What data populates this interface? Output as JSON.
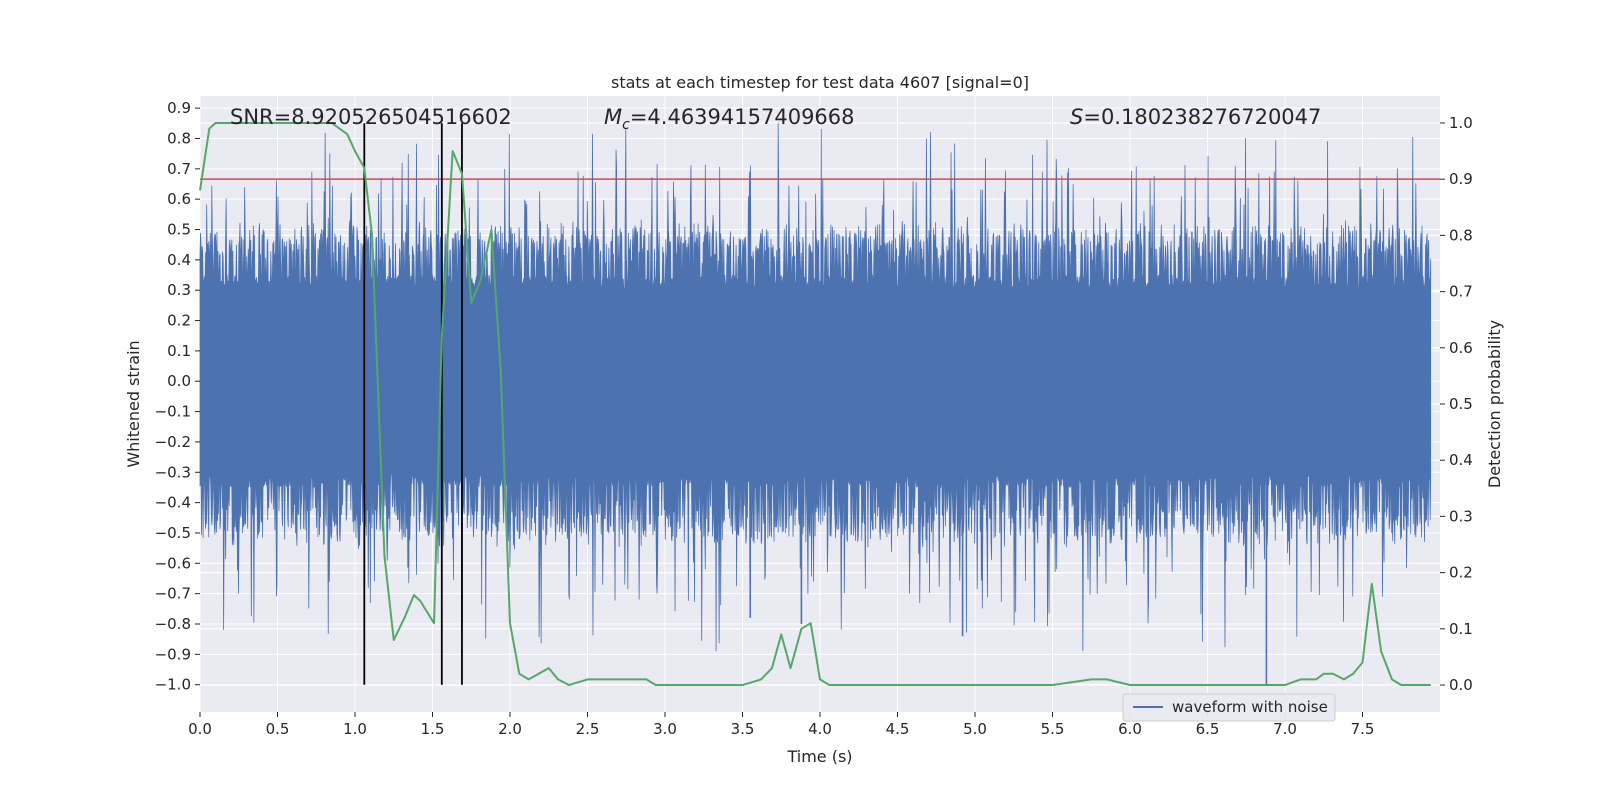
{
  "chart_data": {
    "type": "line",
    "title": "stats at each timestep for test data 4607 [signal=0]",
    "xlabel": "Time (s)",
    "ylabel": "Whitened strain",
    "y2label": "Detection probability",
    "xlim": [
      0.0,
      8.0
    ],
    "ylim": [
      -1.09,
      0.94
    ],
    "y2lim": [
      -0.048,
      1.048
    ],
    "xticks": [
      0.0,
      0.5,
      1.0,
      1.5,
      2.0,
      2.5,
      3.0,
      3.5,
      4.0,
      4.5,
      5.0,
      5.5,
      6.0,
      6.5,
      7.0,
      7.5
    ],
    "xtick_labels": [
      "0.0",
      "0.5",
      "1.0",
      "1.5",
      "2.0",
      "2.5",
      "3.0",
      "3.5",
      "4.0",
      "4.5",
      "5.0",
      "5.5",
      "6.0",
      "6.5",
      "7.0",
      "7.5"
    ],
    "yticks": [
      -1.0,
      -0.9,
      -0.8,
      -0.7,
      -0.6,
      -0.5,
      -0.4,
      -0.3,
      -0.2,
      -0.1,
      0.0,
      0.1,
      0.2,
      0.3,
      0.4,
      0.5,
      0.6,
      0.7,
      0.8,
      0.9
    ],
    "ytick_labels": [
      "−1.0",
      "−0.9",
      "−0.8",
      "−0.7",
      "−0.6",
      "−0.5",
      "−0.4",
      "−0.3",
      "−0.2",
      "−0.1",
      "0.0",
      "0.1",
      "0.2",
      "0.3",
      "0.4",
      "0.5",
      "0.6",
      "0.7",
      "0.8",
      "0.9"
    ],
    "y2ticks": [
      0.0,
      0.1,
      0.2,
      0.3,
      0.4,
      0.5,
      0.6,
      0.7,
      0.8,
      0.9,
      1.0
    ],
    "y2tick_labels": [
      "0.0",
      "0.1",
      "0.2",
      "0.3",
      "0.4",
      "0.5",
      "0.6",
      "0.7",
      "0.8",
      "0.9",
      "1.0"
    ],
    "threshold": 0.9,
    "vlines_x": [
      1.06,
      1.56,
      1.69
    ],
    "vlines_yrange": [
      -1.0,
      0.85
    ],
    "annotations": {
      "snr": "SNR=8.920526504516602",
      "mc_symbol": "M",
      "mc_sub": "c",
      "mc_value": "=4.46394157409668",
      "s_symbol": "S",
      "s_value": "=0.180238276720047"
    },
    "legend": {
      "label": "waveform with noise",
      "position": "lower-right"
    },
    "series": [
      {
        "name": "waveform with noise",
        "axis": "left",
        "color": "#4c72b0",
        "description": "dense whitened-strain noise, core amplitude about ±0.3 with spikes to about ±0.85",
        "typical_range": [
          -0.3,
          0.3
        ],
        "extreme_range": [
          -1.0,
          0.85
        ]
      },
      {
        "name": "detection probability",
        "axis": "right",
        "color": "#55a868",
        "x": [
          0.0,
          0.06,
          0.1,
          0.2,
          0.4,
          0.6,
          0.85,
          0.95,
          1.0,
          1.06,
          1.11,
          1.19,
          1.25,
          1.32,
          1.38,
          1.42,
          1.51,
          1.56,
          1.63,
          1.69,
          1.75,
          1.81,
          1.88,
          1.94,
          2.0,
          2.06,
          2.12,
          2.25,
          2.31,
          2.38,
          2.5,
          2.62,
          2.69,
          2.75,
          2.81,
          2.88,
          2.94,
          3.0,
          3.25,
          3.5,
          3.62,
          3.69,
          3.75,
          3.81,
          3.88,
          3.94,
          4.0,
          4.06,
          4.12,
          4.25,
          4.5,
          4.75,
          4.85,
          4.95,
          5.0,
          5.25,
          5.5,
          5.75,
          5.85,
          6.0,
          6.25,
          6.5,
          6.75,
          6.85,
          7.0,
          7.1,
          7.2,
          7.25,
          7.31,
          7.38,
          7.44,
          7.5,
          7.56,
          7.62,
          7.69,
          7.75,
          7.94
        ],
        "values": [
          0.88,
          0.99,
          1.0,
          1.0,
          1.0,
          1.0,
          1.0,
          0.98,
          0.95,
          0.92,
          0.8,
          0.23,
          0.08,
          0.12,
          0.16,
          0.15,
          0.11,
          0.62,
          0.95,
          0.91,
          0.68,
          0.72,
          0.81,
          0.56,
          0.11,
          0.02,
          0.01,
          0.03,
          0.01,
          0.0,
          0.01,
          0.01,
          0.01,
          0.01,
          0.01,
          0.01,
          0.0,
          0.0,
          0.0,
          0.0,
          0.01,
          0.03,
          0.09,
          0.03,
          0.1,
          0.11,
          0.01,
          0.0,
          0.0,
          0.0,
          0.0,
          0.0,
          0.0,
          0.0,
          0.0,
          0.0,
          0.0,
          0.01,
          0.01,
          0.0,
          0.0,
          0.0,
          0.0,
          0.0,
          0.0,
          0.01,
          0.01,
          0.02,
          0.02,
          0.01,
          0.02,
          0.04,
          0.18,
          0.06,
          0.01,
          0.0,
          0.0
        ]
      }
    ]
  }
}
